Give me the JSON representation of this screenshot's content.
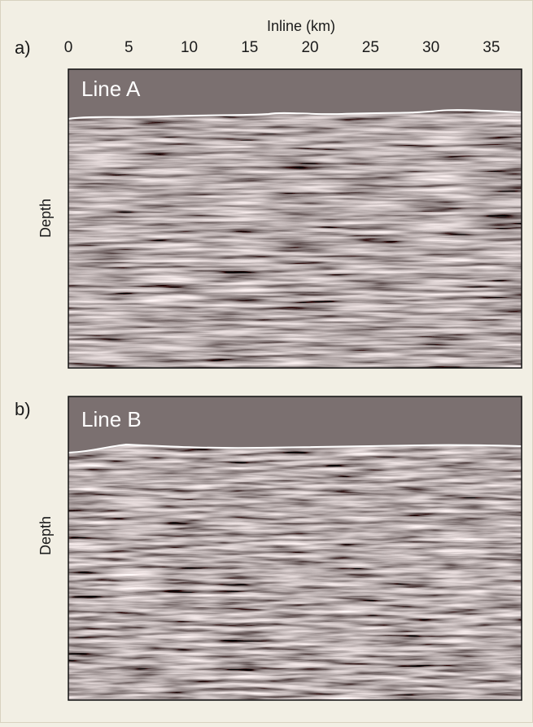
{
  "axis": {
    "label": "Inline (km)",
    "lim": [
      0,
      37.5
    ],
    "ticks": [
      0,
      5,
      10,
      15,
      20,
      25,
      30,
      35
    ]
  },
  "panels": [
    {
      "label": "a)",
      "title": "Line A",
      "y_label": "Depth"
    },
    {
      "label": "b)",
      "title": "Line B",
      "y_label": "Depth"
    }
  ]
}
